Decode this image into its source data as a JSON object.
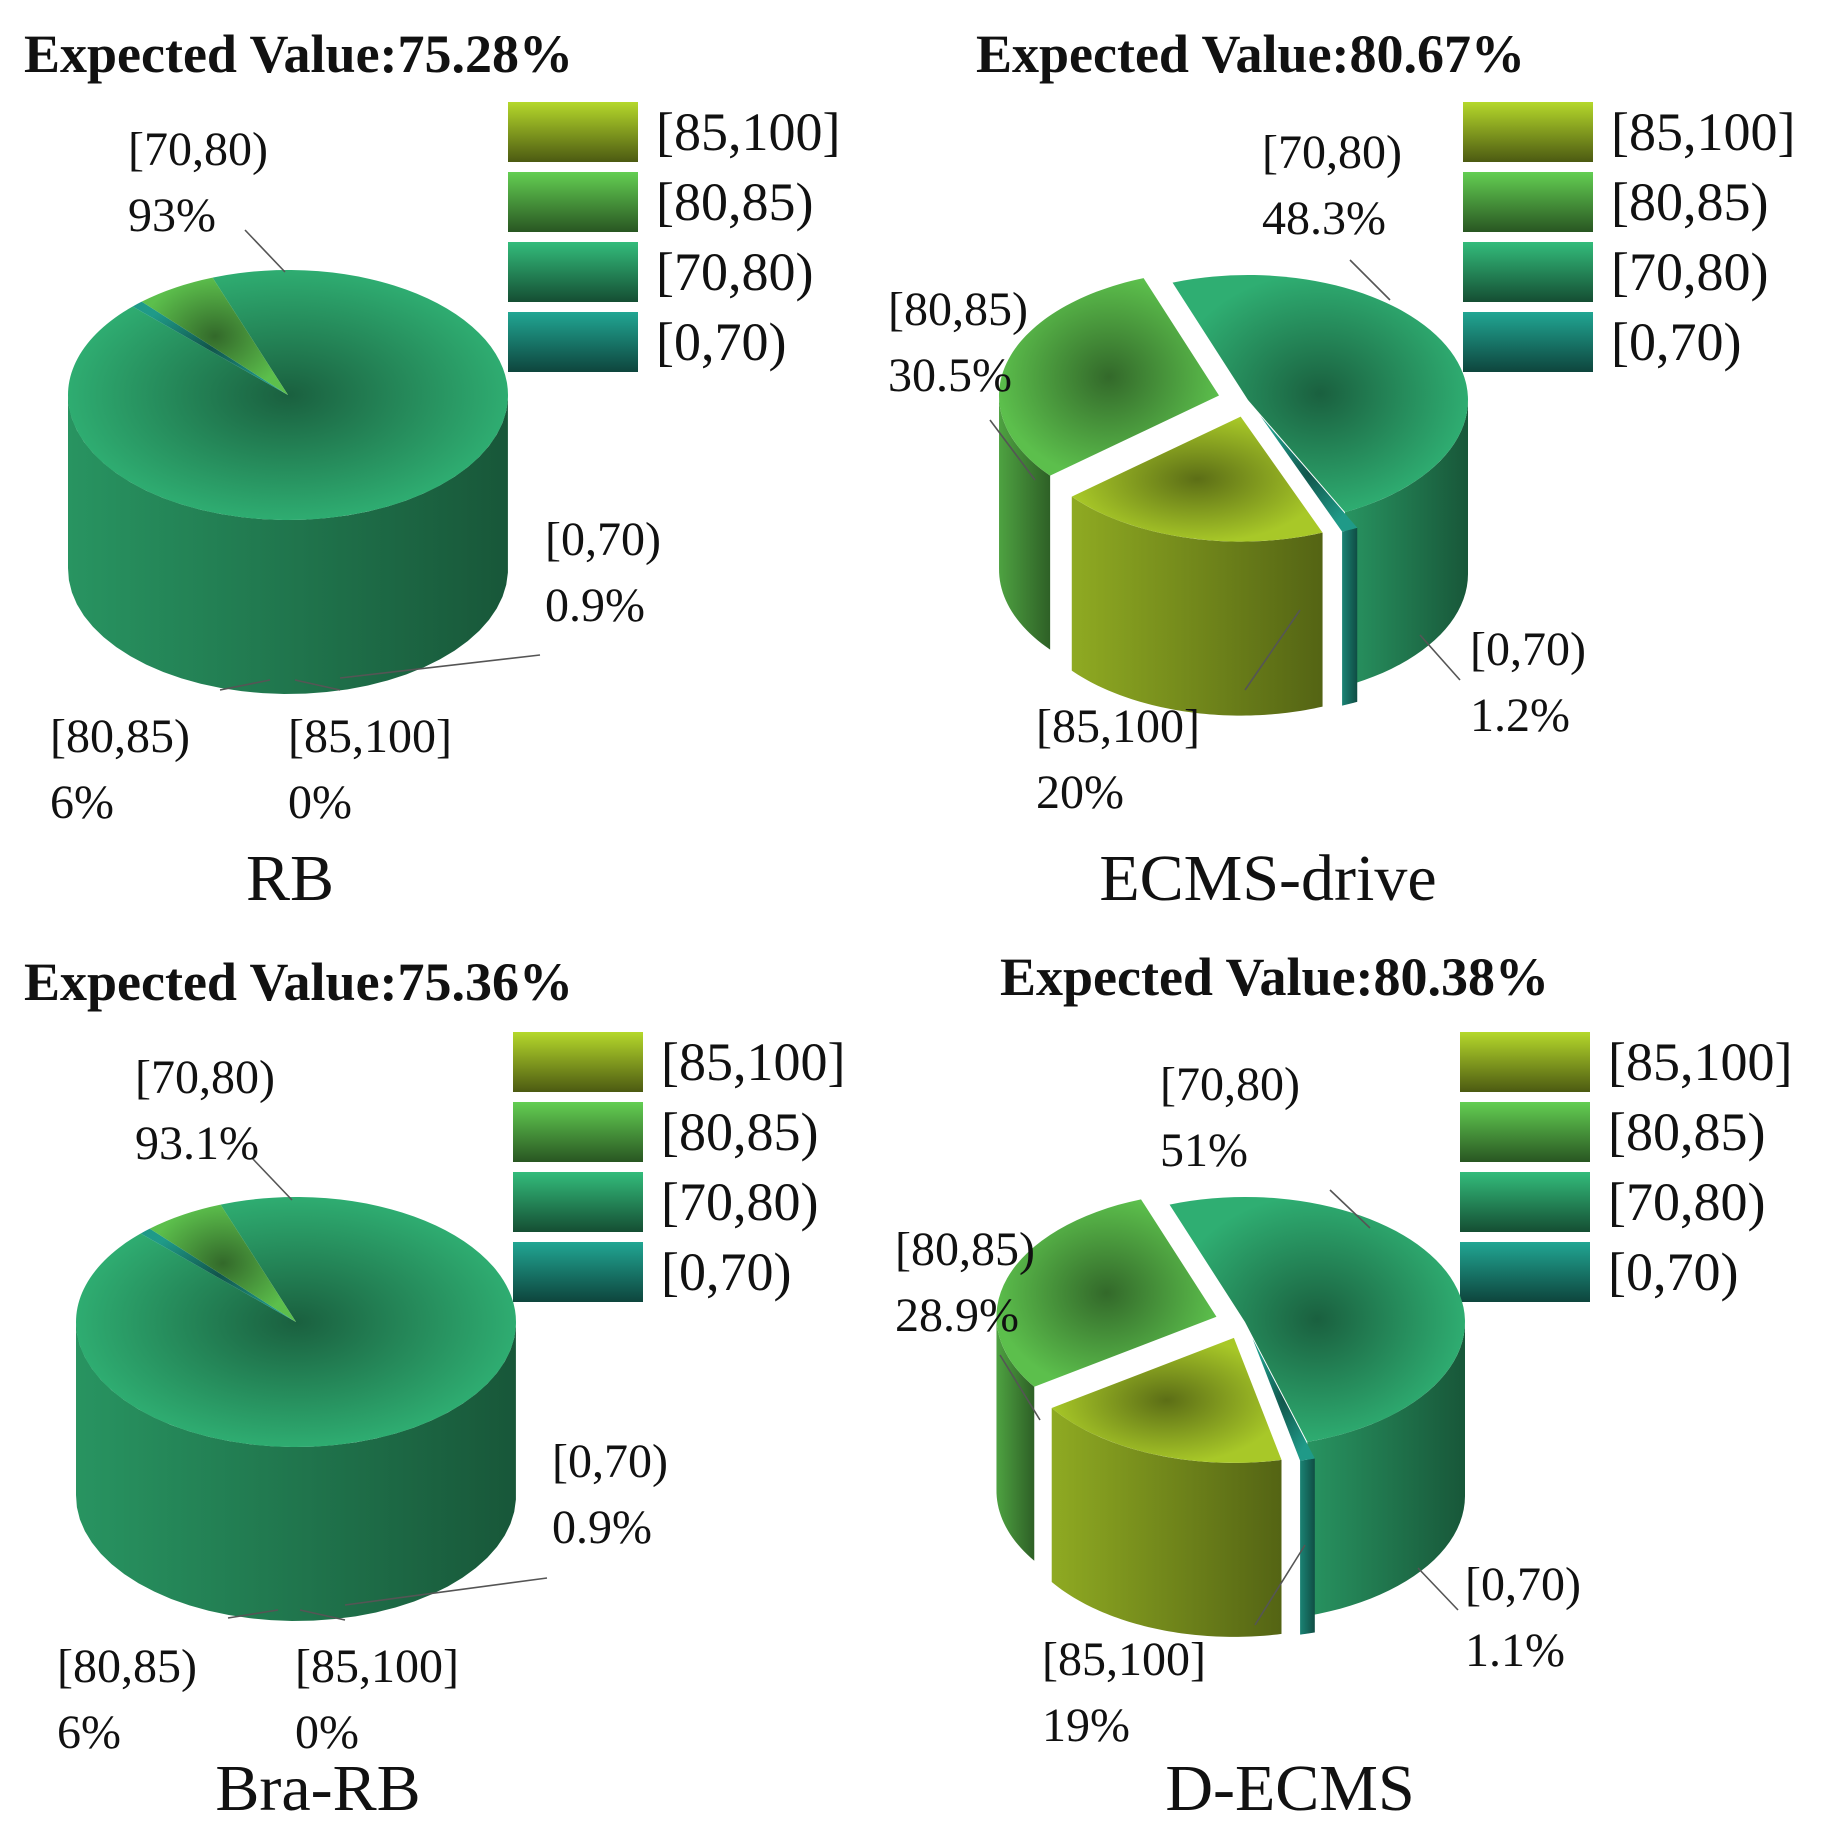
{
  "chart_data": [
    {
      "type": "pie",
      "title": "Expected Value:75.28%",
      "method": "RB",
      "legend": [
        "[85,100]",
        "[80,85)",
        "[70,80)",
        "[0,70)"
      ],
      "slices": [
        {
          "label": "[70,80)",
          "value": 93,
          "value_text": "93%"
        },
        {
          "label": "[0,70)",
          "value": 0.9,
          "value_text": "0.9%"
        },
        {
          "label": "[85,100]",
          "value": 0,
          "value_text": "0%"
        },
        {
          "label": "[80,85)",
          "value": 6,
          "value_text": "6%"
        }
      ]
    },
    {
      "type": "pie",
      "title": "Expected Value:80.67%",
      "method": "ECMS-drive",
      "legend": [
        "[85,100]",
        "[80,85)",
        "[70,80)",
        "[0,70)"
      ],
      "slices": [
        {
          "label": "[70,80)",
          "value": 48.3,
          "value_text": "48.3%"
        },
        {
          "label": "[0,70)",
          "value": 1.2,
          "value_text": "1.2%"
        },
        {
          "label": "[85,100]",
          "value": 20,
          "value_text": "20%"
        },
        {
          "label": "[80,85)",
          "value": 30.5,
          "value_text": "30.5%"
        }
      ]
    },
    {
      "type": "pie",
      "title": "Expected Value:75.36%",
      "method": "Bra-RB",
      "legend": [
        "[85,100]",
        "[80,85)",
        "[70,80)",
        "[0,70)"
      ],
      "slices": [
        {
          "label": "[70,80)",
          "value": 93.1,
          "value_text": "93.1%"
        },
        {
          "label": "[0,70)",
          "value": 0.9,
          "value_text": "0.9%"
        },
        {
          "label": "[85,100]",
          "value": 0,
          "value_text": "0%"
        },
        {
          "label": "[80,85)",
          "value": 6,
          "value_text": "6%"
        }
      ]
    },
    {
      "type": "pie",
      "title": "Expected Value:80.38%",
      "method": "D-ECMS",
      "legend": [
        "[85,100]",
        "[80,85)",
        "[70,80)",
        "[0,70)"
      ],
      "slices": [
        {
          "label": "[70,80)",
          "value": 51,
          "value_text": "51%"
        },
        {
          "label": "[0,70)",
          "value": 1.1,
          "value_text": "1.1%"
        },
        {
          "label": "[85,100]",
          "value": 19,
          "value_text": "19%"
        },
        {
          "label": "[80,85)",
          "value": 28.9,
          "value_text": "28.9%"
        }
      ]
    }
  ],
  "colors": {
    "[85,100]": "#a8c828",
    "[80,85)": "#5cbf4c",
    "[70,80)": "#2fae72",
    "[0,70)": "#1f9a88"
  }
}
